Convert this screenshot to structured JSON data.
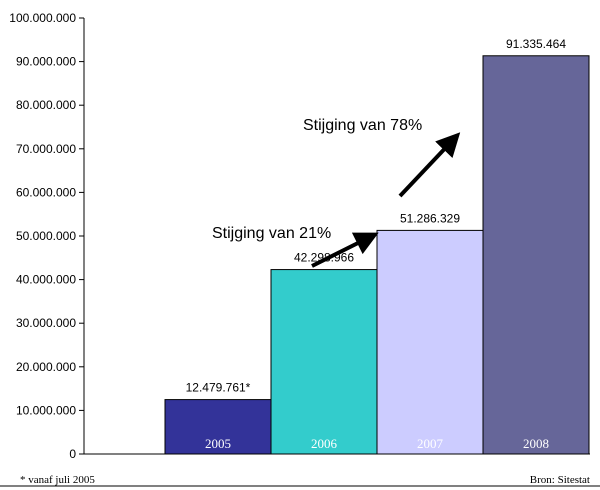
{
  "chart_data": {
    "type": "bar",
    "categories": [
      "2005",
      "2006",
      "2007",
      "2008"
    ],
    "values": [
      12479761,
      42298966,
      51286329,
      91335464
    ],
    "value_labels": [
      "12.479.761*",
      "42.298.966",
      "51.286.329",
      "91.335.464"
    ],
    "ylim": [
      0,
      100000000
    ],
    "y_ticks": [
      0,
      10000000,
      20000000,
      30000000,
      40000000,
      50000000,
      60000000,
      70000000,
      80000000,
      90000000,
      100000000
    ],
    "y_tick_labels": [
      "0",
      "10.000.000",
      "20.000.000",
      "30.000.000",
      "40.000.000",
      "50.000.000",
      "60.000.000",
      "70.000.000",
      "80.000.000",
      "90.000.000",
      "100.000.000"
    ],
    "colors": [
      "#333399",
      "#33cccc",
      "#ccccff",
      "#666699"
    ],
    "grid": false,
    "annotations": [
      {
        "text": "Stijging van 21%",
        "from_category": "2006",
        "to_category": "2007"
      },
      {
        "text": "Stijging van 78%",
        "from_category": "2007",
        "to_category": "2008"
      }
    ],
    "footnote": "* vanaf juli 2005",
    "source": "Bron: Sitestat"
  }
}
